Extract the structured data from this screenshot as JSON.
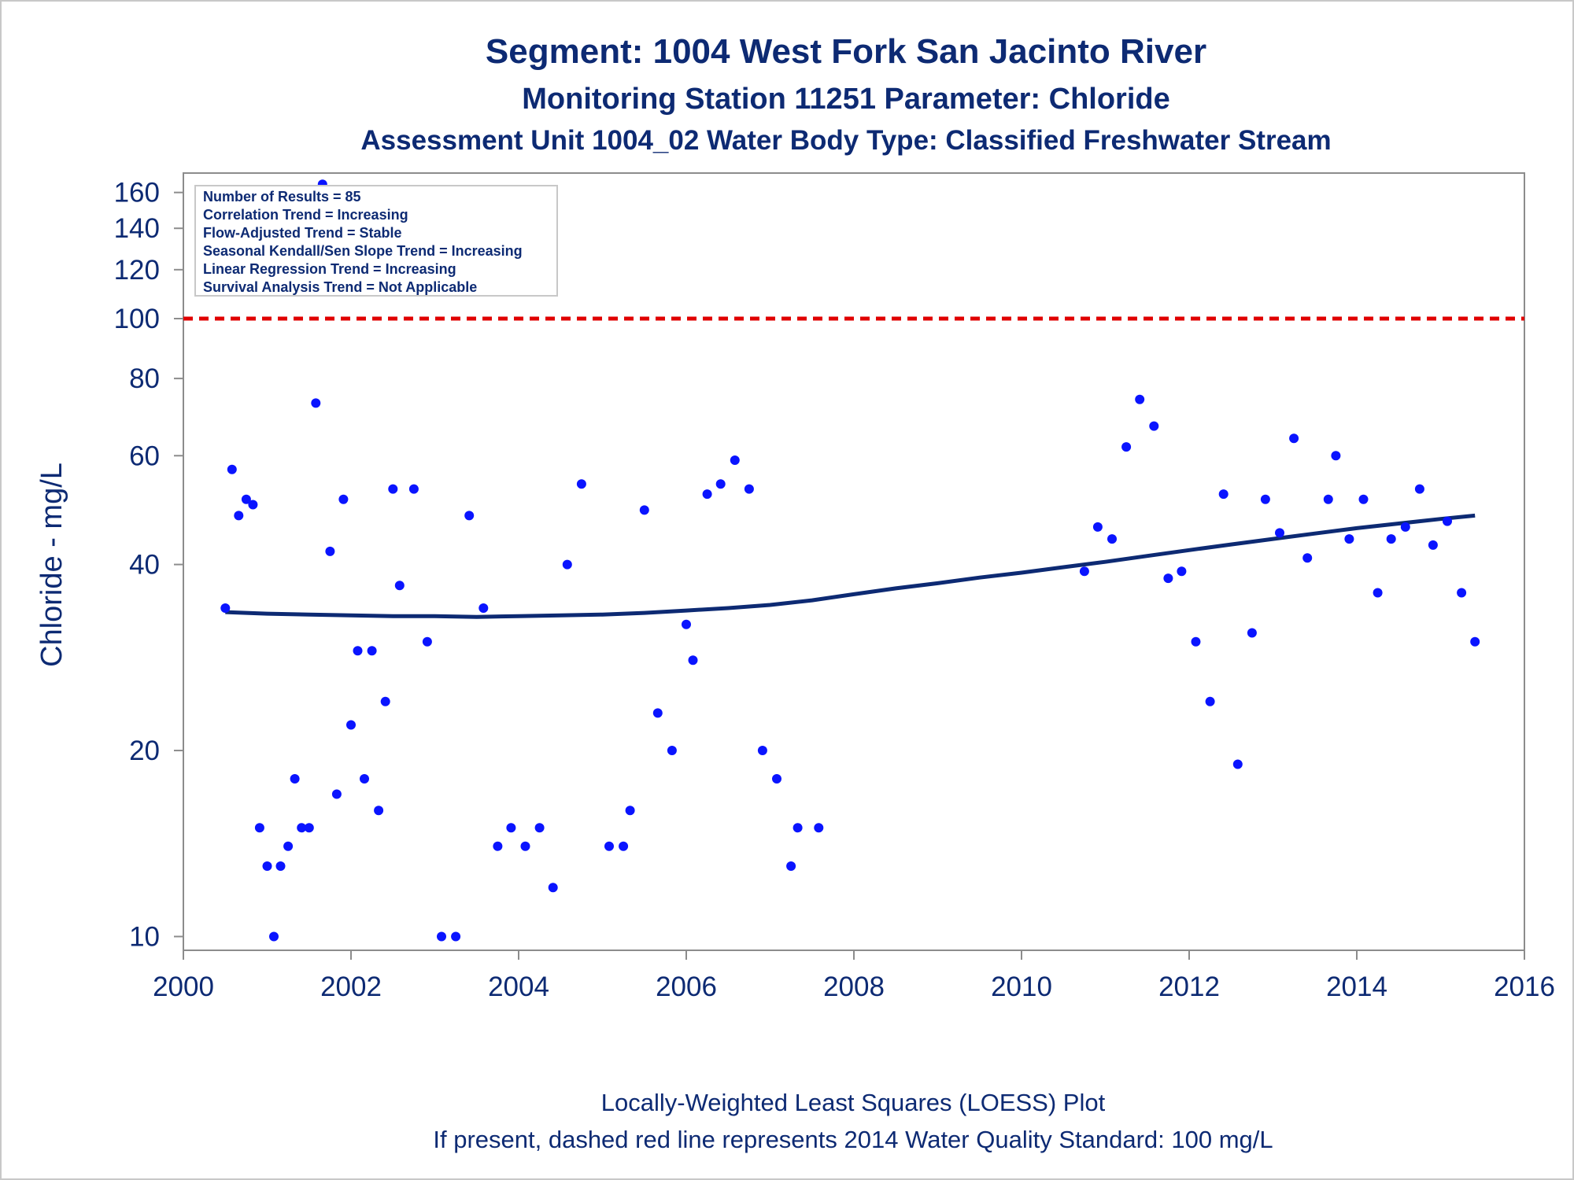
{
  "chart_data": {
    "type": "scatter",
    "title": "Segment: 1004  West Fork San Jacinto River",
    "subtitles": [
      "Monitoring Station 11251 Parameter: Chloride",
      "Assessment Unit 1004_02   Water Body Type: Classified Freshwater Stream"
    ],
    "ylabel": "Chloride - mg/L",
    "xlabel": "",
    "yscale": "log",
    "xlim": [
      2000,
      2016
    ],
    "ylim": [
      9.5,
      172
    ],
    "x_ticks": [
      "2000",
      "2002",
      "2004",
      "2006",
      "2008",
      "2010",
      "2012",
      "2014",
      "2016"
    ],
    "y_ticks": [
      10,
      20,
      40,
      60,
      80,
      100,
      120,
      140,
      160
    ],
    "grid": false,
    "legend": "none",
    "inset_stats": [
      "Number of Results = 85",
      "Correlation Trend = Increasing",
      "Flow-Adjusted Trend = Stable",
      "Seasonal Kendall/Sen Slope Trend = Increasing",
      "Linear Regression Trend = Increasing",
      "Survival Analysis Trend = Not Applicable"
    ],
    "standard_line": {
      "value": 100,
      "style": "dashed",
      "color": "#e00000"
    },
    "points_color": "#0a14ff",
    "loess_color": "#0d2a73",
    "series": [
      {
        "type": "scatter",
        "points": [
          [
            2000.5,
            34
          ],
          [
            2000.58,
            57
          ],
          [
            2000.66,
            48
          ],
          [
            2000.75,
            51
          ],
          [
            2000.83,
            50
          ],
          [
            2000.91,
            15
          ],
          [
            2001.0,
            13
          ],
          [
            2001.08,
            10
          ],
          [
            2001.16,
            13
          ],
          [
            2001.25,
            14
          ],
          [
            2001.33,
            18
          ],
          [
            2001.41,
            15
          ],
          [
            2001.5,
            15
          ],
          [
            2001.58,
            73
          ],
          [
            2001.66,
            165
          ],
          [
            2001.75,
            42
          ],
          [
            2001.83,
            17
          ],
          [
            2001.91,
            51
          ],
          [
            2002.0,
            22
          ],
          [
            2002.08,
            29
          ],
          [
            2002.16,
            18
          ],
          [
            2002.25,
            29
          ],
          [
            2002.33,
            16
          ],
          [
            2002.41,
            24
          ],
          [
            2002.5,
            53
          ],
          [
            2002.58,
            37
          ],
          [
            2002.75,
            53
          ],
          [
            2002.91,
            30
          ],
          [
            2003.08,
            10
          ],
          [
            2003.25,
            10
          ],
          [
            2003.41,
            48
          ],
          [
            2003.58,
            34
          ],
          [
            2003.75,
            14
          ],
          [
            2003.91,
            15
          ],
          [
            2004.08,
            14
          ],
          [
            2004.25,
            15
          ],
          [
            2004.41,
            12
          ],
          [
            2004.58,
            40
          ],
          [
            2004.75,
            54
          ],
          [
            2005.08,
            14
          ],
          [
            2005.25,
            14
          ],
          [
            2005.33,
            16
          ],
          [
            2005.5,
            49
          ],
          [
            2005.66,
            23
          ],
          [
            2005.83,
            20
          ],
          [
            2006.0,
            32
          ],
          [
            2006.08,
            28
          ],
          [
            2006.25,
            52
          ],
          [
            2006.41,
            54
          ],
          [
            2006.58,
            59
          ],
          [
            2006.75,
            53
          ],
          [
            2006.91,
            20
          ],
          [
            2007.08,
            18
          ],
          [
            2007.25,
            13
          ],
          [
            2007.33,
            15
          ],
          [
            2007.58,
            15
          ],
          [
            2010.75,
            39
          ],
          [
            2010.91,
            46
          ],
          [
            2011.08,
            44
          ],
          [
            2011.25,
            62
          ],
          [
            2011.41,
            74
          ],
          [
            2011.58,
            67
          ],
          [
            2011.75,
            38
          ],
          [
            2011.91,
            39
          ],
          [
            2012.08,
            30
          ],
          [
            2012.25,
            24
          ],
          [
            2012.41,
            52
          ],
          [
            2012.58,
            19
          ],
          [
            2012.75,
            31
          ],
          [
            2012.91,
            51
          ],
          [
            2013.08,
            45
          ],
          [
            2013.25,
            64
          ],
          [
            2013.41,
            41
          ],
          [
            2013.66,
            51
          ],
          [
            2013.75,
            60
          ],
          [
            2013.91,
            44
          ],
          [
            2014.08,
            51
          ],
          [
            2014.25,
            36
          ],
          [
            2014.41,
            44
          ],
          [
            2014.58,
            46
          ],
          [
            2014.75,
            53
          ],
          [
            2014.91,
            43
          ],
          [
            2015.08,
            47
          ],
          [
            2015.25,
            36
          ],
          [
            2015.41,
            30
          ]
        ]
      },
      {
        "type": "line",
        "name": "LOESS",
        "points": [
          [
            2000.5,
            33.5
          ],
          [
            2001.0,
            33.3
          ],
          [
            2001.5,
            33.2
          ],
          [
            2002.0,
            33.1
          ],
          [
            2002.5,
            33.0
          ],
          [
            2003.0,
            33.0
          ],
          [
            2003.5,
            32.9
          ],
          [
            2004.0,
            33.0
          ],
          [
            2004.5,
            33.1
          ],
          [
            2005.0,
            33.2
          ],
          [
            2005.5,
            33.4
          ],
          [
            2006.0,
            33.7
          ],
          [
            2006.5,
            34.0
          ],
          [
            2007.0,
            34.4
          ],
          [
            2007.5,
            35.0
          ],
          [
            2008.0,
            35.8
          ],
          [
            2008.5,
            36.6
          ],
          [
            2009.0,
            37.3
          ],
          [
            2009.5,
            38.1
          ],
          [
            2010.0,
            38.8
          ],
          [
            2010.5,
            39.6
          ],
          [
            2011.0,
            40.4
          ],
          [
            2011.5,
            41.3
          ],
          [
            2012.0,
            42.2
          ],
          [
            2012.5,
            43.1
          ],
          [
            2013.0,
            44.0
          ],
          [
            2013.5,
            44.9
          ],
          [
            2014.0,
            45.8
          ],
          [
            2014.5,
            46.6
          ],
          [
            2015.0,
            47.4
          ],
          [
            2015.41,
            48.0
          ]
        ]
      }
    ]
  },
  "footer": {
    "line1": "Locally-Weighted Least Squares (LOESS) Plot",
    "line2": "If present, dashed red line represents 2014 Water Quality Standard: 100    mg/L"
  }
}
